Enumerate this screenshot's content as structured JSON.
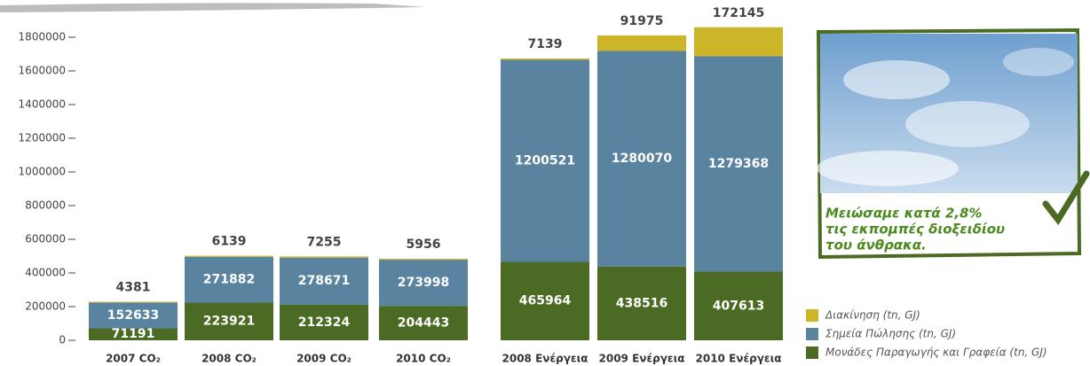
{
  "chart_data": {
    "type": "stacked_bar",
    "categories": [
      "2007 CO₂",
      "2008 CO₂",
      "2009 CO₂",
      "2010 CO₂",
      "2008 Ενέργεια",
      "2009 Ενέργεια",
      "2010 Ενέργεια"
    ],
    "series": [
      {
        "name": "Μονάδες Παραγωγής και Γραφεία (tn, GJ)",
        "color": "#4b6b25",
        "values": [
          71191,
          223921,
          212324,
          204443,
          465964,
          438516,
          407613
        ]
      },
      {
        "name": "Σημεία Πώλησης (tn, GJ)",
        "color": "#5a83a0",
        "values": [
          152633,
          271882,
          278671,
          273998,
          1200521,
          1280070,
          1279368
        ]
      },
      {
        "name": "Διακίνηση (tn, GJ)",
        "color": "#cdb52a",
        "values": [
          4381,
          6139,
          7255,
          5956,
          7139,
          91975,
          172145
        ]
      }
    ],
    "ylim": [
      0,
      1800000
    ],
    "yticks": [
      0,
      200000,
      400000,
      600000,
      800000,
      1000000,
      1200000,
      1400000,
      1600000,
      1800000
    ],
    "annotation": [
      "Μειώσαμε κατά 2,8%",
      "τις εκπομπές διοξειδίου",
      "του άνθρακα."
    ]
  }
}
